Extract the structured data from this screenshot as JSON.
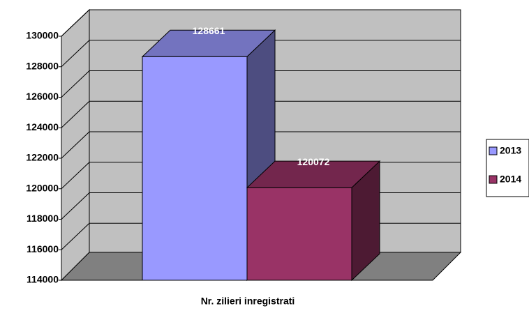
{
  "chart_data": {
    "type": "bar3d",
    "categories": [
      "Nr. zilieri inregistrati"
    ],
    "series": [
      {
        "name": "2013",
        "color": "#9999ff",
        "values": [
          128661
        ]
      },
      {
        "name": "2014",
        "color": "#993366",
        "values": [
          120072
        ]
      }
    ],
    "ylim": [
      114000,
      130000
    ],
    "yticks": [
      114000,
      116000,
      118000,
      120000,
      122000,
      124000,
      126000,
      128000,
      130000
    ],
    "grid": true,
    "legend": "right"
  }
}
